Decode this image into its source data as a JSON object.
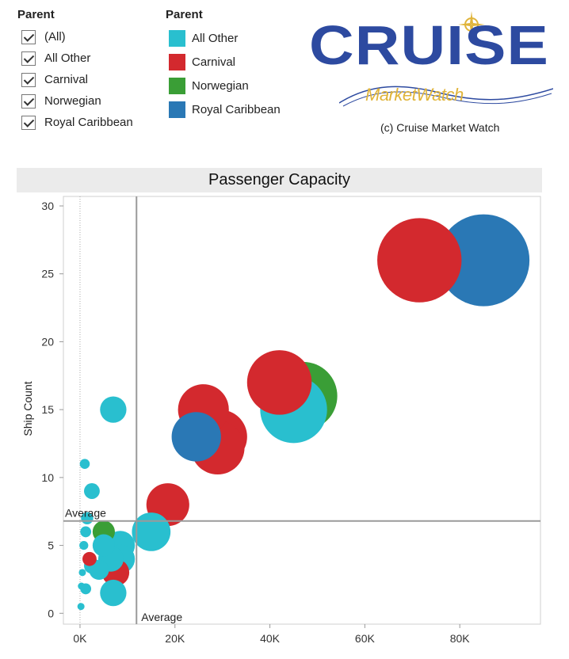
{
  "filter": {
    "title": "Parent",
    "items": [
      "(All)",
      "All Other",
      "Carnival",
      "Norwegian",
      "Royal Caribbean"
    ]
  },
  "legend": {
    "title": "Parent",
    "items": [
      {
        "label": "All Other",
        "color": "#29bfcf"
      },
      {
        "label": "Carnival",
        "color": "#d3292e"
      },
      {
        "label": "Norwegian",
        "color": "#3a9e36"
      },
      {
        "label": "Royal Caribbean",
        "color": "#2a78b5"
      }
    ]
  },
  "logo": {
    "word": "CRUISE",
    "sub": "MarketWatch",
    "copyright": "(c) Cruise Market Watch",
    "icon": "compass-rose-icon"
  },
  "chart_data": {
    "type": "scatter",
    "title": "Passenger Capacity",
    "xlabel": "",
    "ylabel": "Ship Count",
    "xlim": [
      -3500,
      97000
    ],
    "ylim": [
      -0.8,
      30.7
    ],
    "x_ticks": [
      {
        "value": 0,
        "label": "0K"
      },
      {
        "value": 20000,
        "label": "20K"
      },
      {
        "value": 40000,
        "label": "40K"
      },
      {
        "value": 60000,
        "label": "60K"
      },
      {
        "value": 80000,
        "label": "80K"
      }
    ],
    "y_ticks": [
      0,
      5,
      10,
      15,
      20,
      25,
      30
    ],
    "reference_lines": [
      {
        "axis": "x",
        "value": 11900,
        "label": "Average"
      },
      {
        "axis": "y",
        "value": 6.8,
        "label": "Average"
      }
    ],
    "series": [
      {
        "name": "Royal Caribbean",
        "color": "#2a78b5",
        "points": [
          {
            "x": 85000,
            "y": 26,
            "size": 85000
          },
          {
            "x": 24500,
            "y": 13,
            "size": 24500
          }
        ]
      },
      {
        "name": "Norwegian",
        "color": "#3a9e36",
        "points": [
          {
            "x": 47000,
            "y": 16,
            "size": 47000
          },
          {
            "x": 5000,
            "y": 6,
            "size": 5000
          }
        ]
      },
      {
        "name": "Carnival",
        "color": "#d3292e",
        "points": [
          {
            "x": 71500,
            "y": 26,
            "size": 71500
          },
          {
            "x": 42000,
            "y": 17,
            "size": 42000
          },
          {
            "x": 26000,
            "y": 15,
            "size": 26000
          },
          {
            "x": 29500,
            "y": 13,
            "size": 29500
          },
          {
            "x": 29000,
            "y": 12.2,
            "size": 29000
          },
          {
            "x": 18500,
            "y": 8,
            "size": 18500
          },
          {
            "x": 2000,
            "y": 4,
            "size": 2000
          },
          {
            "x": 7500,
            "y": 3,
            "size": 7500
          }
        ]
      },
      {
        "name": "All Other",
        "color": "#29bfcf",
        "points": [
          {
            "x": 45000,
            "y": 15,
            "size": 45000
          },
          {
            "x": 15000,
            "y": 6,
            "size": 15000
          },
          {
            "x": 7000,
            "y": 15,
            "size": 7000
          },
          {
            "x": 1000,
            "y": 11,
            "size": 1000
          },
          {
            "x": 2500,
            "y": 9,
            "size": 2500
          },
          {
            "x": 1500,
            "y": 7,
            "size": 1500
          },
          {
            "x": 1200,
            "y": 6,
            "size": 1200
          },
          {
            "x": 800,
            "y": 5,
            "size": 800
          },
          {
            "x": 500,
            "y": 3,
            "size": 500
          },
          {
            "x": 300,
            "y": 2,
            "size": 300
          },
          {
            "x": 200,
            "y": 0.5,
            "size": 200
          },
          {
            "x": 1200,
            "y": 1.8,
            "size": 1200
          },
          {
            "x": 2500,
            "y": 3.5,
            "size": 2500
          },
          {
            "x": 5000,
            "y": 5,
            "size": 5000
          },
          {
            "x": 6500,
            "y": 4,
            "size": 6500
          },
          {
            "x": 4000,
            "y": 3.2,
            "size": 4000
          },
          {
            "x": 8500,
            "y": 5,
            "size": 8500
          },
          {
            "x": 8500,
            "y": 4,
            "size": 8500
          },
          {
            "x": 7000,
            "y": 1.5,
            "size": 7000
          }
        ]
      }
    ]
  }
}
